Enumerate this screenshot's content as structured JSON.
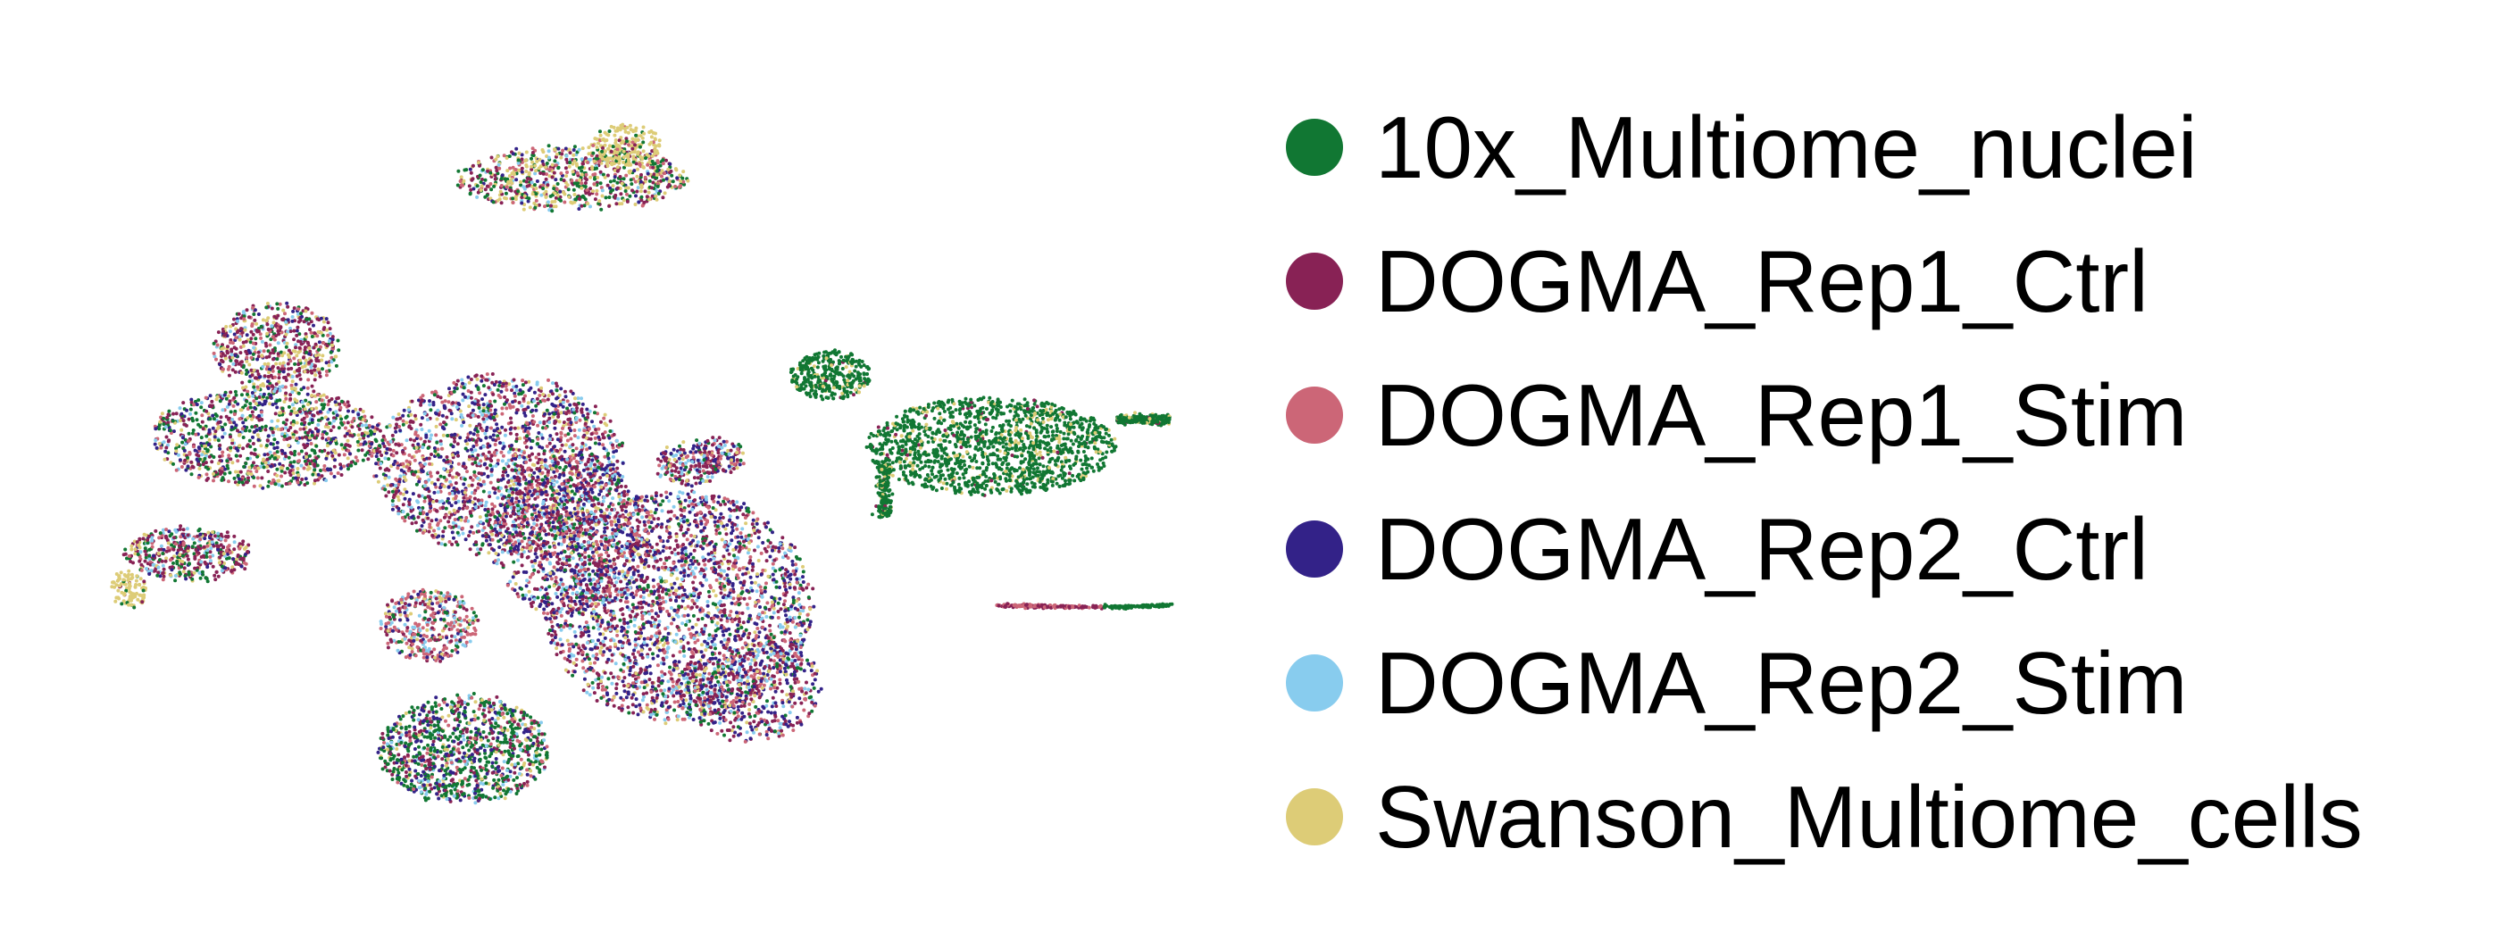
{
  "chart_data": {
    "type": "scatter",
    "title": "",
    "xlabel": "",
    "ylabel": "",
    "axes_visible": false,
    "grid": false,
    "legend_placement": "right",
    "series": [
      {
        "name": "10x_Multiome_nuclei",
        "color": "#117733"
      },
      {
        "name": "DOGMA_Rep1_Ctrl",
        "color": "#882255"
      },
      {
        "name": "DOGMA_Rep1_Stim",
        "color": "#CC6677"
      },
      {
        "name": "DOGMA_Rep2_Ctrl",
        "color": "#332288"
      },
      {
        "name": "DOGMA_Rep2_Stim",
        "color": "#88CCEE"
      },
      {
        "name": "Swanson_Multiome_cells",
        "color": "#DDCC77"
      }
    ]
  }
}
